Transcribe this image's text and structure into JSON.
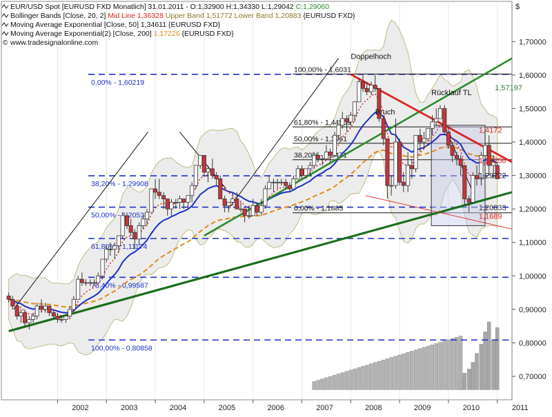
{
  "chart_data": {
    "type": "candlestick",
    "currency_symbol": "$",
    "legend": [
      {
        "icon": "ohlc-icon",
        "text": "EUR/USD Spot [EURUSD FXD  Monatlich] 31.01.2011 - O:1,32900 H:1,34330 L:1,29042",
        "extra": "C:1,29060",
        "extra_color": "#2a8a2a"
      },
      {
        "icon": "line-icon",
        "text": "Bollinger Bands [Close, 20, 2]",
        "extra": "Mid Line 1,36328",
        "extra_color": "#dd2222",
        "extra2": "Upper Band 1,51772 Lower Band 1,20883",
        "extra2_color": "#8a7a22",
        "tail": "{EURUSD FXD}"
      },
      {
        "icon": "line-icon",
        "text": "Moving Average Exponential [Close, 50] 1,34611 {EURUSD FXD}"
      },
      {
        "icon": "line-icon",
        "text": "Moving Average Exponential(2) [Close, 200]",
        "extra": "1,17226",
        "extra_color": "#e08a1a",
        "tail": "{EURUSD FXD}"
      },
      {
        "icon": "copyright-icon",
        "text": "www.tradesignalonline.com"
      }
    ],
    "y_ticks": [
      "1,70000",
      "1,60000",
      "1,50000",
      "1,40000",
      "1,30000",
      "1,20000",
      "1,10000",
      "1,00000",
      "0,90000",
      "0,80000",
      "0,70000"
    ],
    "y_tick_values": [
      1.7,
      1.6,
      1.5,
      1.4,
      1.3,
      1.2,
      1.1,
      1.0,
      0.9,
      0.8,
      0.7
    ],
    "ylim": [
      0.63,
      1.82
    ],
    "x_ticks": [
      "2002",
      "2003",
      "2004",
      "2005",
      "2006",
      "2007",
      "2008",
      "2009",
      "2010",
      "2011"
    ],
    "x_tick_values": [
      2002,
      2003,
      2004,
      2005,
      2006,
      2007,
      2008,
      2009,
      2010,
      2011
    ],
    "xlim": [
      2000.85,
      2011.3
    ],
    "fib_left": [
      {
        "label": "0,00% - 1,60219",
        "value": 1.60219
      },
      {
        "label": "38,20% - 1,29908",
        "value": 1.29908
      },
      {
        "label": "50,00% - 1,20538",
        "value": 1.20538
      },
      {
        "label": "61,80% - 1,11174",
        "value": 1.11174
      },
      {
        "label": "76,40% - 0,99587",
        "value": 0.99587
      },
      {
        "label": "100,00% - 0,80858",
        "value": 0.80858
      }
    ],
    "fib_right": [
      {
        "label": "100,00% - 1,6031",
        "value": 1.6031
      },
      {
        "label": "61,80% - 1,44509",
        "value": 1.44509
      },
      {
        "label": "50,00% - 1,3961",
        "value": 1.3961
      },
      {
        "label": "38,20% - 1,3471",
        "value": 1.3471
      },
      {
        "label": "0,00% - 1,1885",
        "value": 1.1885
      }
    ],
    "annotations": [
      {
        "text": "Doppelhoch",
        "x": 2008.0,
        "y": 1.648
      },
      {
        "text": "Rücklauf TL",
        "x": 2009.65,
        "y": 1.54
      },
      {
        "text": "Bruch",
        "x": 2008.5,
        "y": 1.482
      },
      {
        "text": "1,57197",
        "x": 2010.95,
        "y": 1.554,
        "color": "#2a7a2a"
      },
      {
        "text": "1,4172",
        "x": 2010.62,
        "y": 1.428,
        "color": "#dd2222"
      },
      {
        "text": "1,34258",
        "x": 2010.62,
        "y": 1.337,
        "color": "#dd2222"
      },
      {
        "text": "1,29722",
        "x": 2010.62,
        "y": 1.292,
        "color": "#222222"
      },
      {
        "text": "1,20833",
        "x": 2010.62,
        "y": 1.196,
        "color": "#333333"
      },
      {
        "text": "1,1689",
        "x": 2010.62,
        "y": 1.17,
        "color": "#dd2222"
      }
    ],
    "candles": [
      [
        2001.0,
        0.94,
        0.95,
        0.92,
        0.93
      ],
      [
        2001.08,
        0.93,
        0.94,
        0.9,
        0.91
      ],
      [
        2001.17,
        0.91,
        0.92,
        0.87,
        0.88
      ],
      [
        2001.25,
        0.88,
        0.9,
        0.86,
        0.89
      ],
      [
        2001.33,
        0.89,
        0.9,
        0.85,
        0.86
      ],
      [
        2001.42,
        0.86,
        0.88,
        0.84,
        0.87
      ],
      [
        2001.5,
        0.87,
        0.89,
        0.86,
        0.88
      ],
      [
        2001.58,
        0.88,
        0.92,
        0.87,
        0.91
      ],
      [
        2001.67,
        0.91,
        0.93,
        0.89,
        0.9
      ],
      [
        2001.75,
        0.9,
        0.92,
        0.89,
        0.91
      ],
      [
        2001.83,
        0.91,
        0.91,
        0.88,
        0.89
      ],
      [
        2001.92,
        0.89,
        0.9,
        0.87,
        0.88
      ],
      [
        2002.0,
        0.88,
        0.89,
        0.86,
        0.87
      ],
      [
        2002.08,
        0.87,
        0.88,
        0.86,
        0.87
      ],
      [
        2002.17,
        0.87,
        0.88,
        0.86,
        0.88
      ],
      [
        2002.25,
        0.88,
        0.91,
        0.87,
        0.9
      ],
      [
        2002.33,
        0.9,
        0.94,
        0.89,
        0.93
      ],
      [
        2002.42,
        0.93,
        1.0,
        0.93,
        0.99
      ],
      [
        2002.5,
        0.99,
        1.01,
        0.97,
        0.98
      ],
      [
        2002.58,
        0.98,
        0.99,
        0.97,
        0.98
      ],
      [
        2002.67,
        0.98,
        0.99,
        0.97,
        0.98
      ],
      [
        2002.75,
        0.98,
        0.99,
        0.97,
        0.98
      ],
      [
        2002.83,
        0.98,
        1.01,
        0.98,
        1.0
      ],
      [
        2002.92,
        1.0,
        1.05,
        0.99,
        1.05
      ],
      [
        2003.0,
        1.05,
        1.09,
        1.04,
        1.08
      ],
      [
        2003.08,
        1.08,
        1.1,
        1.06,
        1.08
      ],
      [
        2003.17,
        1.08,
        1.1,
        1.05,
        1.09
      ],
      [
        2003.25,
        1.09,
        1.12,
        1.07,
        1.12
      ],
      [
        2003.33,
        1.12,
        1.19,
        1.11,
        1.18
      ],
      [
        2003.42,
        1.18,
        1.19,
        1.14,
        1.15
      ],
      [
        2003.5,
        1.15,
        1.17,
        1.12,
        1.13
      ],
      [
        2003.58,
        1.13,
        1.14,
        1.08,
        1.11
      ],
      [
        2003.67,
        1.11,
        1.16,
        1.09,
        1.15
      ],
      [
        2003.75,
        1.15,
        1.18,
        1.14,
        1.17
      ],
      [
        2003.83,
        1.17,
        1.2,
        1.15,
        1.19
      ],
      [
        2003.92,
        1.19,
        1.26,
        1.19,
        1.26
      ],
      [
        2004.0,
        1.26,
        1.29,
        1.23,
        1.25
      ],
      [
        2004.08,
        1.25,
        1.29,
        1.23,
        1.24
      ],
      [
        2004.17,
        1.24,
        1.25,
        1.2,
        1.23
      ],
      [
        2004.25,
        1.23,
        1.23,
        1.18,
        1.2
      ],
      [
        2004.33,
        1.2,
        1.23,
        1.18,
        1.22
      ],
      [
        2004.42,
        1.22,
        1.23,
        1.2,
        1.22
      ],
      [
        2004.5,
        1.22,
        1.24,
        1.2,
        1.23
      ],
      [
        2004.58,
        1.23,
        1.23,
        1.2,
        1.22
      ],
      [
        2004.67,
        1.22,
        1.24,
        1.2,
        1.24
      ],
      [
        2004.75,
        1.24,
        1.28,
        1.22,
        1.27
      ],
      [
        2004.83,
        1.27,
        1.33,
        1.26,
        1.33
      ],
      [
        2004.92,
        1.33,
        1.36,
        1.32,
        1.36
      ],
      [
        2005.0,
        1.36,
        1.36,
        1.3,
        1.31
      ],
      [
        2005.08,
        1.31,
        1.33,
        1.28,
        1.32
      ],
      [
        2005.17,
        1.32,
        1.35,
        1.29,
        1.3
      ],
      [
        2005.25,
        1.3,
        1.31,
        1.27,
        1.29
      ],
      [
        2005.33,
        1.29,
        1.3,
        1.23,
        1.23
      ],
      [
        2005.42,
        1.23,
        1.24,
        1.19,
        1.21
      ],
      [
        2005.5,
        1.21,
        1.22,
        1.19,
        1.22
      ],
      [
        2005.58,
        1.22,
        1.25,
        1.21,
        1.23
      ],
      [
        2005.67,
        1.23,
        1.25,
        1.2,
        1.2
      ],
      [
        2005.75,
        1.2,
        1.22,
        1.19,
        1.2
      ],
      [
        2005.83,
        1.2,
        1.2,
        1.16,
        1.18
      ],
      [
        2005.92,
        1.18,
        1.21,
        1.17,
        1.18
      ],
      [
        2006.0,
        1.18,
        1.23,
        1.18,
        1.21
      ],
      [
        2006.08,
        1.21,
        1.22,
        1.18,
        1.19
      ],
      [
        2006.17,
        1.19,
        1.23,
        1.18,
        1.21
      ],
      [
        2006.25,
        1.21,
        1.27,
        1.2,
        1.26
      ],
      [
        2006.33,
        1.26,
        1.3,
        1.26,
        1.28
      ],
      [
        2006.42,
        1.28,
        1.29,
        1.25,
        1.28
      ],
      [
        2006.5,
        1.28,
        1.29,
        1.26,
        1.28
      ],
      [
        2006.58,
        1.28,
        1.29,
        1.27,
        1.28
      ],
      [
        2006.67,
        1.28,
        1.29,
        1.26,
        1.27
      ],
      [
        2006.75,
        1.27,
        1.28,
        1.25,
        1.26
      ],
      [
        2006.83,
        1.26,
        1.3,
        1.26,
        1.29
      ],
      [
        2006.92,
        1.29,
        1.33,
        1.29,
        1.32
      ],
      [
        2007.0,
        1.32,
        1.33,
        1.29,
        1.3
      ],
      [
        2007.08,
        1.3,
        1.32,
        1.29,
        1.32
      ],
      [
        2007.17,
        1.32,
        1.34,
        1.3,
        1.33
      ],
      [
        2007.25,
        1.33,
        1.37,
        1.32,
        1.36
      ],
      [
        2007.33,
        1.36,
        1.37,
        1.34,
        1.35
      ],
      [
        2007.42,
        1.35,
        1.36,
        1.33,
        1.35
      ],
      [
        2007.5,
        1.35,
        1.39,
        1.35,
        1.37
      ],
      [
        2007.58,
        1.37,
        1.38,
        1.34,
        1.36
      ],
      [
        2007.67,
        1.36,
        1.43,
        1.36,
        1.42
      ],
      [
        2007.75,
        1.42,
        1.45,
        1.41,
        1.45
      ],
      [
        2007.83,
        1.45,
        1.49,
        1.44,
        1.47
      ],
      [
        2007.92,
        1.47,
        1.48,
        1.43,
        1.46
      ],
      [
        2008.0,
        1.46,
        1.49,
        1.45,
        1.48
      ],
      [
        2008.08,
        1.48,
        1.52,
        1.46,
        1.52
      ],
      [
        2008.17,
        1.52,
        1.59,
        1.52,
        1.58
      ],
      [
        2008.25,
        1.58,
        1.6,
        1.55,
        1.56
      ],
      [
        2008.33,
        1.56,
        1.58,
        1.54,
        1.55
      ],
      [
        2008.42,
        1.55,
        1.58,
        1.54,
        1.57
      ],
      [
        2008.5,
        1.57,
        1.6,
        1.55,
        1.56
      ],
      [
        2008.58,
        1.56,
        1.56,
        1.46,
        1.47
      ],
      [
        2008.67,
        1.47,
        1.48,
        1.39,
        1.41
      ],
      [
        2008.75,
        1.41,
        1.41,
        1.23,
        1.27
      ],
      [
        2008.83,
        1.27,
        1.3,
        1.24,
        1.27
      ],
      [
        2008.92,
        1.27,
        1.47,
        1.26,
        1.4
      ],
      [
        2009.0,
        1.4,
        1.41,
        1.27,
        1.28
      ],
      [
        2009.08,
        1.28,
        1.31,
        1.25,
        1.27
      ],
      [
        2009.17,
        1.27,
        1.37,
        1.25,
        1.33
      ],
      [
        2009.25,
        1.33,
        1.35,
        1.29,
        1.32
      ],
      [
        2009.33,
        1.32,
        1.42,
        1.31,
        1.42
      ],
      [
        2009.42,
        1.42,
        1.44,
        1.37,
        1.4
      ],
      [
        2009.5,
        1.4,
        1.43,
        1.38,
        1.41
      ],
      [
        2009.58,
        1.41,
        1.44,
        1.4,
        1.44
      ],
      [
        2009.67,
        1.44,
        1.48,
        1.42,
        1.46
      ],
      [
        2009.75,
        1.46,
        1.5,
        1.45,
        1.47
      ],
      [
        2009.83,
        1.47,
        1.51,
        1.47,
        1.5
      ],
      [
        2009.92,
        1.5,
        1.51,
        1.42,
        1.43
      ],
      [
        2010.0,
        1.43,
        1.45,
        1.38,
        1.39
      ],
      [
        2010.08,
        1.39,
        1.4,
        1.34,
        1.36
      ],
      [
        2010.17,
        1.36,
        1.37,
        1.33,
        1.35
      ],
      [
        2010.25,
        1.35,
        1.36,
        1.3,
        1.33
      ],
      [
        2010.33,
        1.33,
        1.33,
        1.21,
        1.23
      ],
      [
        2010.42,
        1.23,
        1.24,
        1.19,
        1.22
      ],
      [
        2010.5,
        1.22,
        1.31,
        1.22,
        1.3
      ],
      [
        2010.58,
        1.3,
        1.33,
        1.27,
        1.29
      ],
      [
        2010.67,
        1.29,
        1.37,
        1.27,
        1.36
      ],
      [
        2010.75,
        1.36,
        1.42,
        1.36,
        1.39
      ],
      [
        2010.83,
        1.39,
        1.42,
        1.3,
        1.33
      ],
      [
        2010.92,
        1.33,
        1.36,
        1.29,
        1.34
      ],
      [
        2011.0,
        1.33,
        1.34,
        1.29,
        1.29
      ]
    ],
    "volume": [
      [
        2010.25,
        0.12
      ],
      [
        2010.33,
        0.2
      ],
      [
        2010.42,
        0.25
      ],
      [
        2010.5,
        0.33
      ],
      [
        2010.58,
        0.44
      ],
      [
        2010.67,
        0.55
      ],
      [
        2010.75,
        0.7
      ],
      [
        2010.83,
        0.82
      ],
      [
        2010.92,
        0.6
      ],
      [
        2011.0,
        0.75
      ]
    ]
  }
}
